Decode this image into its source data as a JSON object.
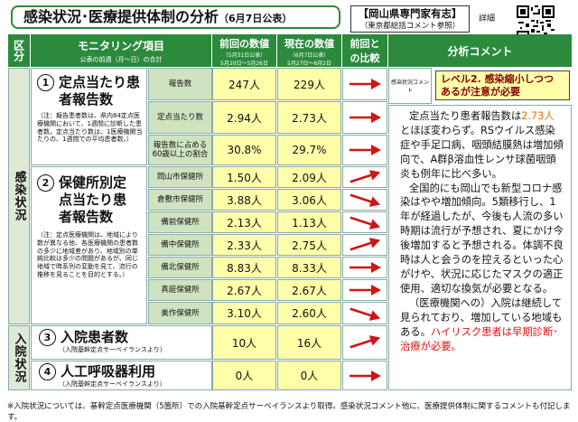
{
  "title": "感染状況･医療提供体制の分析",
  "title_date": "（6月7日公表）",
  "expert": {
    "line1": "【岡山県専門家有志】",
    "line2": "（東京都総括コメント参照）"
  },
  "detail_label": "詳細",
  "headers": {
    "kubun": "区分",
    "item": "モニタリング項目",
    "item_sub": "公表の前週（月～日）の合計",
    "prev": "前回の数値",
    "prev_sub1": "（5月31日公表）",
    "prev_sub2": "5月20日～5月26日",
    "curr": "現在の数値",
    "curr_sub1": "（6月7日公表）",
    "curr_sub2": "5月27日～6月2日",
    "compare": "前回との比較",
    "analysis": "分析コメント"
  },
  "sections": {
    "infection": "感染状況",
    "hospital": "入院状況"
  },
  "items": {
    "i1_label": "定点当たり患者報告数",
    "i1_note": "（注：報告患者数は、県内84定点医療機関において、1週間に診断した患者数。定点当たり数は、1医療機関当たりの、1週間での平均患者数。）",
    "i2_label": "保健所別定点当たり患者報告数",
    "i2_note": "（注：定点医療機関は、地域により数が異なる他、各医療機関の患者数の多少に地域差があり、地域別の単純比較は多少の問題があるが、同じ地域で時系列の変動を見て、流行の推移を見ることを目的とする。）",
    "i3_label": "入院患者数",
    "i3_note": "（入院基幹定点サーベイランスより）",
    "i4_label": "人工呼吸器利用",
    "i4_note": "（入院基幹定点サーベイランスより）"
  },
  "rows": [
    {
      "label": "報告数",
      "prev": "247人",
      "curr": "229人"
    },
    {
      "label": "定点当たり数",
      "prev": "2.94人",
      "curr": "2.73人"
    },
    {
      "label": "報告数に占める60歳以上の割合",
      "prev": "30.8%",
      "curr": "29.7%"
    },
    {
      "label": "岡山市保健所",
      "prev": "1.50人",
      "curr": "2.09人"
    },
    {
      "label": "倉敷市保健所",
      "prev": "3.88人",
      "curr": "3.06人"
    },
    {
      "label": "備前保健所",
      "prev": "2.13人",
      "curr": "1.13人"
    },
    {
      "label": "備中保健所",
      "prev": "2.33人",
      "curr": "2.75人"
    },
    {
      "label": "備北保健所",
      "prev": "8.83人",
      "curr": "8.33人"
    },
    {
      "label": "真庭保健所",
      "prev": "2.67人",
      "curr": "2.67人"
    },
    {
      "label": "美作保健所",
      "prev": "3.10人",
      "curr": "2.60人"
    },
    {
      "label": "",
      "prev": "10人",
      "curr": "16人"
    },
    {
      "label": "",
      "prev": "0人",
      "curr": "0人"
    }
  ],
  "comment": {
    "level_label": "感染状況コメント",
    "level_text1": "レベル2. 感染縮小しつつ",
    "level_text2": "あるが注意が必要",
    "p1_a": "定点当たり患者報告数は",
    "p1_red": "2.73人",
    "p1_b": "とほぼ変わらず。RSウイルス感染症や手足口病、咽頭結膜熱は増加傾向で、A群β溶血性レンサ球菌咽頭炎も例年に比べ多い。",
    "p2": "全国的にも岡山でも新型コロナ感染はやや増加傾向。5類移行し、1年が経過したが、今後も人流の多い時期は流行が予想され、夏にかけ今後増加すると予想される。体調不良時は人と会うのを控えるといった心がけや、状況に応じたマスクの適正使用、適切な換気が必要となる。",
    "p3_a": "（医療機関への）入院は継続して見られており、増加している地域もある。",
    "p3_red": "ハイリスク患者は早期診断･治療が必要。"
  },
  "footer": "※入院状況については、基幹定点医療機関（5箇所）での入院基幹定点サーベイランスより取得。感染状況コメント他に、医療提供体制に関するコメントも付記します。",
  "colors": {
    "green": "#2c8a3c",
    "light_green": "#dfe9d5",
    "yellow": "#ffffaa",
    "red": "#e01010"
  }
}
